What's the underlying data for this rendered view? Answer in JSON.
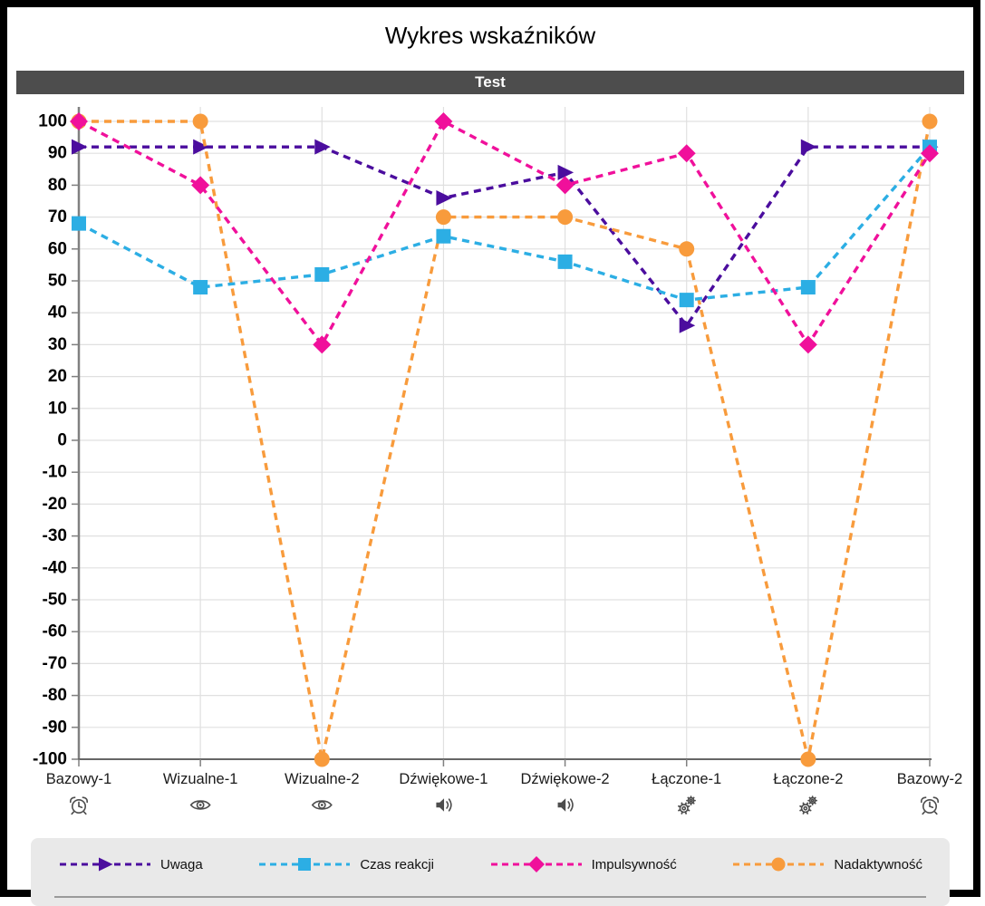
{
  "page": {
    "title": "Wykres wskaźników",
    "section_header": "Test"
  },
  "chart_data": {
    "type": "line",
    "title": "Wykres wskaźników",
    "subtitle": "Test",
    "line_style": "dashed",
    "grid": true,
    "legend_position": "bottom",
    "ylim": [
      -100,
      100
    ],
    "ytick_step": 10,
    "categories": [
      "Bazowy-1",
      "Wizualne-1",
      "Wizualne-2",
      "Dźwiękowe-1",
      "Dźwiękowe-2",
      "Łączone-1",
      "Łączone-2",
      "Bazowy-2"
    ],
    "category_icons": [
      "alarm-clock",
      "eye",
      "eye",
      "speaker",
      "speaker",
      "gears",
      "gears",
      "alarm-clock"
    ],
    "series": [
      {
        "name": "Uwaga",
        "color": "#4B0D9E",
        "marker": "triangle-right",
        "values": [
          92,
          92,
          92,
          76,
          84,
          36,
          92,
          92
        ]
      },
      {
        "name": "Czas reakcji",
        "color": "#2CAEE4",
        "marker": "square",
        "values": [
          68,
          48,
          52,
          64,
          56,
          44,
          48,
          92
        ]
      },
      {
        "name": "Impulsywność",
        "color": "#F0109B",
        "marker": "diamond",
        "values": [
          100,
          80,
          30,
          100,
          80,
          90,
          30,
          90
        ]
      },
      {
        "name": "Nadaktywność",
        "color": "#F89B3C",
        "marker": "circle",
        "values": [
          100,
          100,
          -100,
          70,
          70,
          60,
          -100,
          100
        ]
      }
    ]
  },
  "colors": {
    "frame_border": "#000000",
    "section_header_bg": "#4D4D4D",
    "section_header_text": "#FFFFFF",
    "legend_bg": "#E9E9E9",
    "gridline": "#E0E0E0",
    "axis_line": "#808080",
    "x_axis_line": "#666666",
    "icon_stroke": "#4D4D4D"
  }
}
